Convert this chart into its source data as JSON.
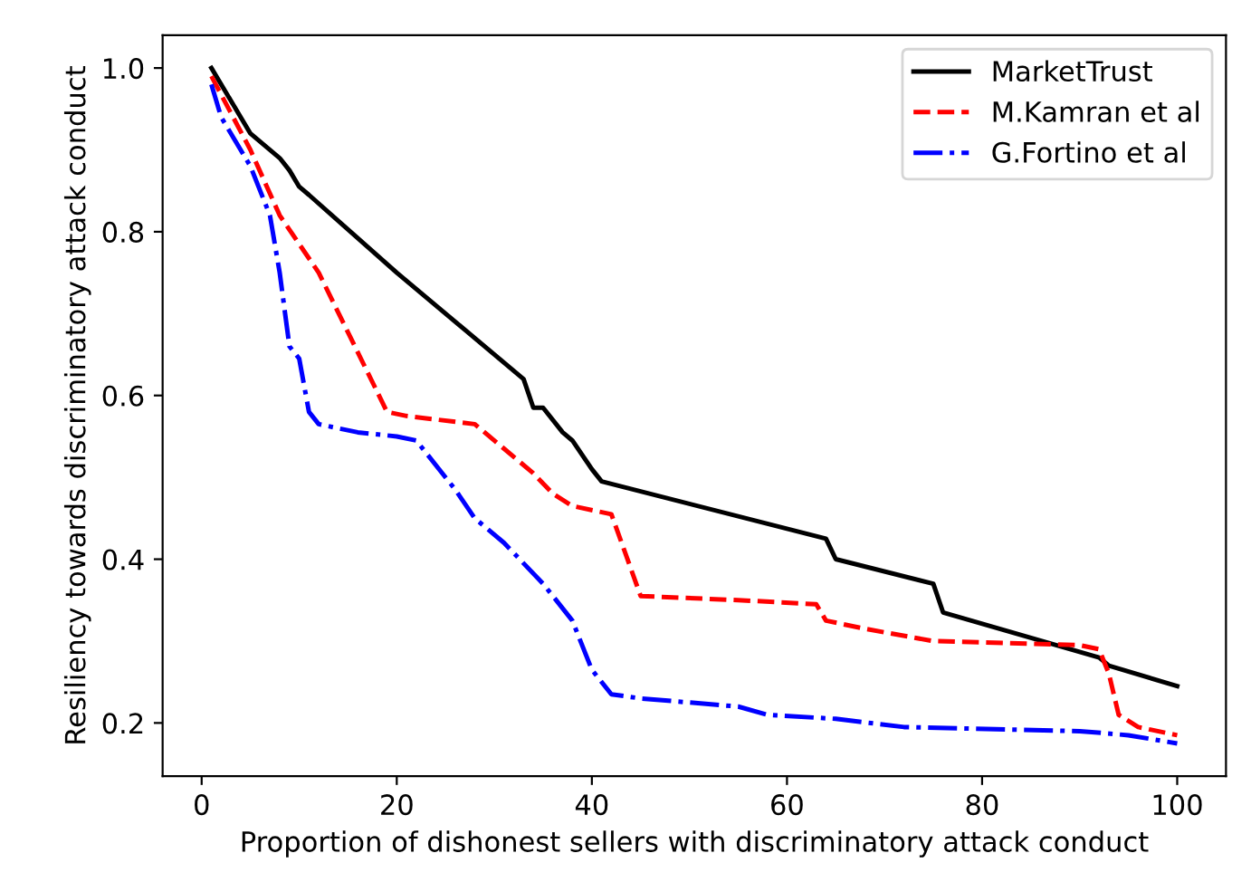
{
  "chart_data": {
    "type": "line",
    "xlabel": "Proportion of dishonest sellers with discriminatory attack conduct",
    "ylabel": "Resiliency towards discriminatory attack conduct",
    "xlim": [
      -4,
      105
    ],
    "ylim": [
      0.135,
      1.04
    ],
    "xticks": [
      0,
      20,
      40,
      60,
      80,
      100
    ],
    "yticks": [
      0.2,
      0.4,
      0.6,
      0.8,
      {
        "value": 1,
        "label": "1.0"
      }
    ],
    "grid": false,
    "legend": "top right",
    "series": [
      {
        "name": "MarketTrust",
        "color": "#000000",
        "line_style": "solid",
        "x": [
          1,
          3,
          5,
          8,
          9,
          10,
          11,
          20,
          33,
          34,
          35,
          37,
          38,
          40,
          41,
          64,
          65,
          75,
          76,
          92,
          93,
          100
        ],
        "values": [
          1.0,
          0.96,
          0.92,
          0.89,
          0.875,
          0.855,
          0.845,
          0.75,
          0.62,
          0.585,
          0.585,
          0.555,
          0.545,
          0.51,
          0.495,
          0.425,
          0.4,
          0.37,
          0.335,
          0.28,
          0.27,
          0.245
        ]
      },
      {
        "name": "M.Kamran et al",
        "color": "#ff0000",
        "line_style": "dashed",
        "x": [
          1,
          5,
          8,
          12,
          19,
          21,
          28,
          31,
          34,
          36,
          38,
          42,
          45,
          55,
          63,
          64,
          68,
          75,
          90,
          92,
          93,
          94,
          96,
          100
        ],
        "values": [
          0.99,
          0.9,
          0.82,
          0.75,
          0.58,
          0.575,
          0.565,
          0.535,
          0.505,
          0.48,
          0.465,
          0.455,
          0.355,
          0.35,
          0.345,
          0.325,
          0.315,
          0.3,
          0.295,
          0.29,
          0.26,
          0.21,
          0.195,
          0.185
        ]
      },
      {
        "name": "G.Fortino et al",
        "color": "#0000ff",
        "line_style": "dashdot",
        "x": [
          1,
          2,
          5,
          7,
          8,
          9,
          10,
          11,
          12,
          16,
          20,
          22,
          26,
          28,
          31,
          35,
          38,
          40,
          42,
          45,
          55,
          58,
          65,
          72,
          90,
          95,
          100
        ],
        "values": [
          0.98,
          0.94,
          0.88,
          0.82,
          0.75,
          0.66,
          0.645,
          0.58,
          0.565,
          0.555,
          0.55,
          0.545,
          0.485,
          0.45,
          0.42,
          0.37,
          0.325,
          0.265,
          0.235,
          0.23,
          0.22,
          0.21,
          0.205,
          0.195,
          0.19,
          0.185,
          0.175
        ]
      }
    ]
  }
}
